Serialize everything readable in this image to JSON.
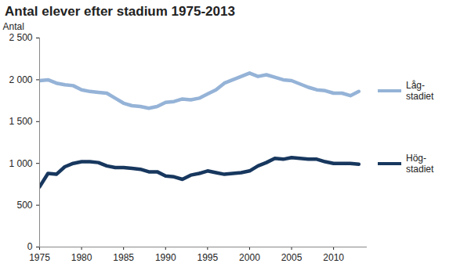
{
  "chart_data": {
    "type": "line",
    "title": "Antal elever efter stadium 1975-2013",
    "y_label": "Antal",
    "x": [
      1975,
      1976,
      1977,
      1978,
      1979,
      1980,
      1981,
      1982,
      1983,
      1984,
      1985,
      1986,
      1987,
      1988,
      1989,
      1990,
      1991,
      1992,
      1993,
      1994,
      1995,
      1996,
      1997,
      1998,
      1999,
      2000,
      2001,
      2002,
      2003,
      2004,
      2005,
      2006,
      2007,
      2008,
      2009,
      2010,
      2011,
      2012,
      2013
    ],
    "series": [
      {
        "name": "Låg-stadiet",
        "color": "#95b3d7",
        "values": [
          1990,
          2000,
          1960,
          1940,
          1930,
          1880,
          1860,
          1850,
          1840,
          1780,
          1720,
          1690,
          1680,
          1660,
          1680,
          1730,
          1740,
          1770,
          1760,
          1780,
          1830,
          1880,
          1960,
          2000,
          2040,
          2080,
          2040,
          2060,
          2030,
          2000,
          1990,
          1950,
          1910,
          1880,
          1870,
          1840,
          1840,
          1810,
          1860
        ]
      },
      {
        "name": "Hög-stadiet",
        "color": "#17375e",
        "values": [
          720,
          880,
          870,
          960,
          1000,
          1020,
          1020,
          1010,
          970,
          950,
          950,
          940,
          930,
          900,
          900,
          850,
          840,
          810,
          860,
          880,
          910,
          890,
          870,
          880,
          890,
          910,
          970,
          1010,
          1060,
          1050,
          1070,
          1060,
          1050,
          1050,
          1020,
          1000,
          1000,
          1000,
          990
        ]
      }
    ],
    "xlim": [
      1975,
      2014
    ],
    "xticks": [
      1975,
      1980,
      1985,
      1990,
      1995,
      2000,
      2005,
      2010
    ],
    "ylim": [
      0,
      2500
    ],
    "yticks": [
      0,
      500,
      {
        "value": 1000,
        "label": "1 000"
      },
      {
        "value": 1500,
        "label": "1 500"
      },
      {
        "value": 2000,
        "label": "2 000"
      },
      {
        "value": 2500,
        "label": "2 500"
      }
    ],
    "grid": false,
    "legend": "right"
  }
}
